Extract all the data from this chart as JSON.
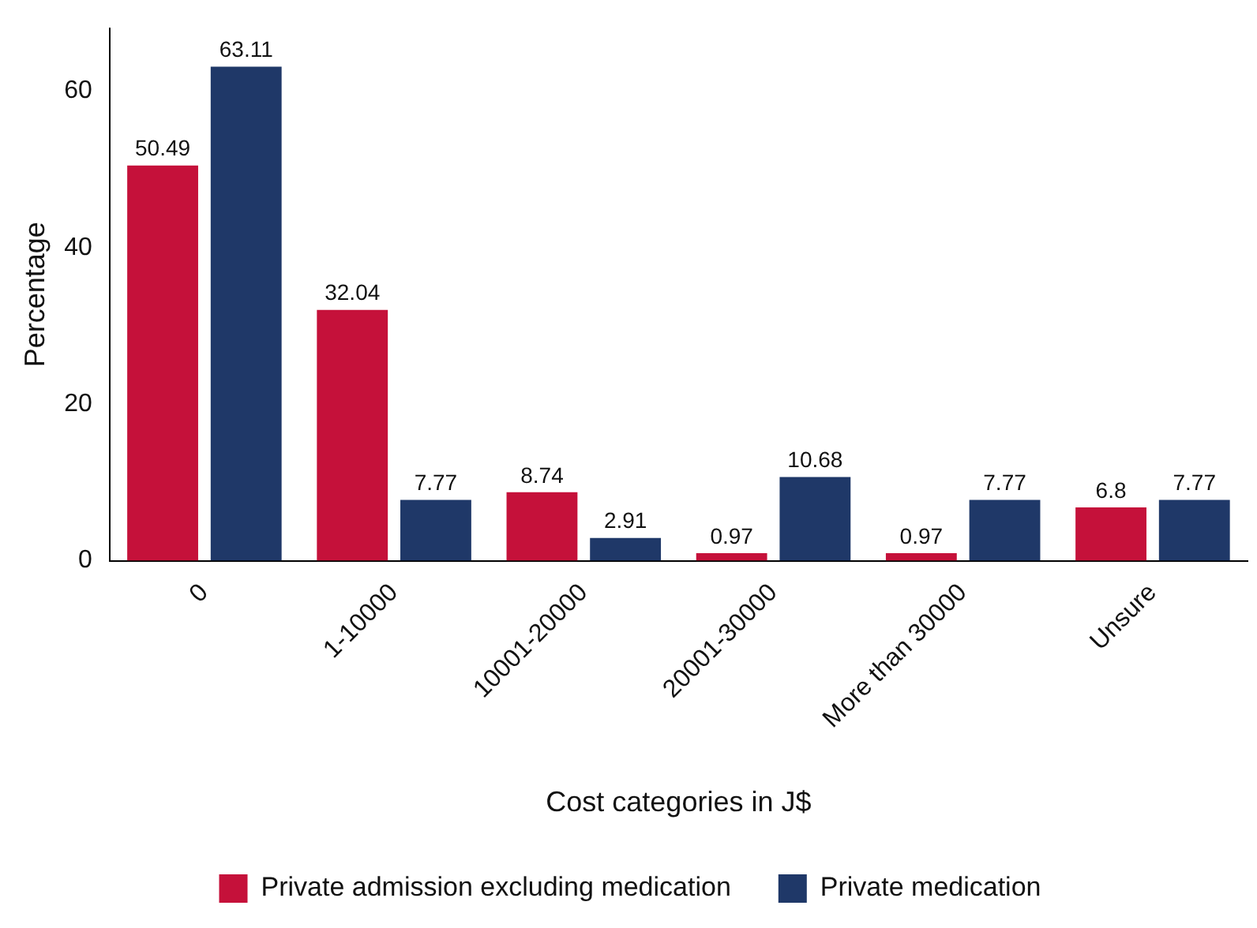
{
  "chart_data": {
    "type": "bar",
    "xlabel": "Cost categories in J$",
    "ylabel": "Percentage",
    "categories": [
      "0",
      "1-10000",
      "10001-20000",
      "20001-30000",
      "More than 30000",
      "Unsure"
    ],
    "series": [
      {
        "name": "Private admission excluding medication",
        "color": "#c5113a",
        "values": [
          50.49,
          32.04,
          8.74,
          0.97,
          0.97,
          6.8
        ]
      },
      {
        "name": "Private medication",
        "color": "#1f3868",
        "values": [
          63.11,
          7.77,
          2.91,
          10.68,
          7.77,
          7.77
        ]
      }
    ],
    "ylim": [
      0,
      68
    ],
    "yticks": [
      0,
      20,
      40,
      60
    ],
    "grid": false,
    "legend": "bottom",
    "data_labels": true
  }
}
